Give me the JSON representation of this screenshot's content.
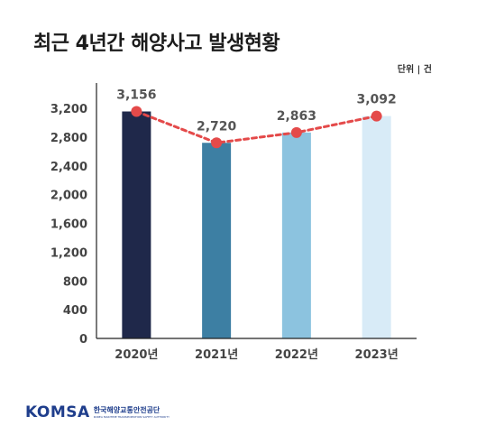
{
  "header": {
    "title": "최근 4년간 해양사고 발생현황",
    "unit": "단위 | 건"
  },
  "colors": {
    "bars": [
      "#1f284a",
      "#3d7fa3",
      "#8cc3df",
      "#d8ebf7"
    ],
    "line": "#e44a4a",
    "axis": "#222222",
    "tick_text": "#444444",
    "label_text": "#555555"
  },
  "chart_data": {
    "type": "bar",
    "title": "최근 4년간 해양사고 발생현황",
    "xlabel": "",
    "ylabel": "",
    "categories": [
      "2020년",
      "2021년",
      "2022년",
      "2023년"
    ],
    "values": [
      3156,
      2720,
      2863,
      3092
    ],
    "data_labels": [
      "3,156",
      "2,720",
      "2,863",
      "3,092"
    ],
    "overlay": "line",
    "ylim": [
      0,
      3200
    ],
    "yticks": [
      0,
      400,
      800,
      1200,
      1600,
      2000,
      2400,
      2800,
      3200
    ],
    "ytick_labels": [
      "0",
      "400",
      "800",
      "1,200",
      "1,600",
      "2,000",
      "2,400",
      "2,800",
      "3,200"
    ],
    "grid": false,
    "legend": "none"
  },
  "footer": {
    "logo_mark": "KOMSA",
    "logo_korean": "한국해양교통안전공단",
    "logo_english": "KOREA MARITIME TRANSPORTATION SAFETY AUTHORITY"
  }
}
